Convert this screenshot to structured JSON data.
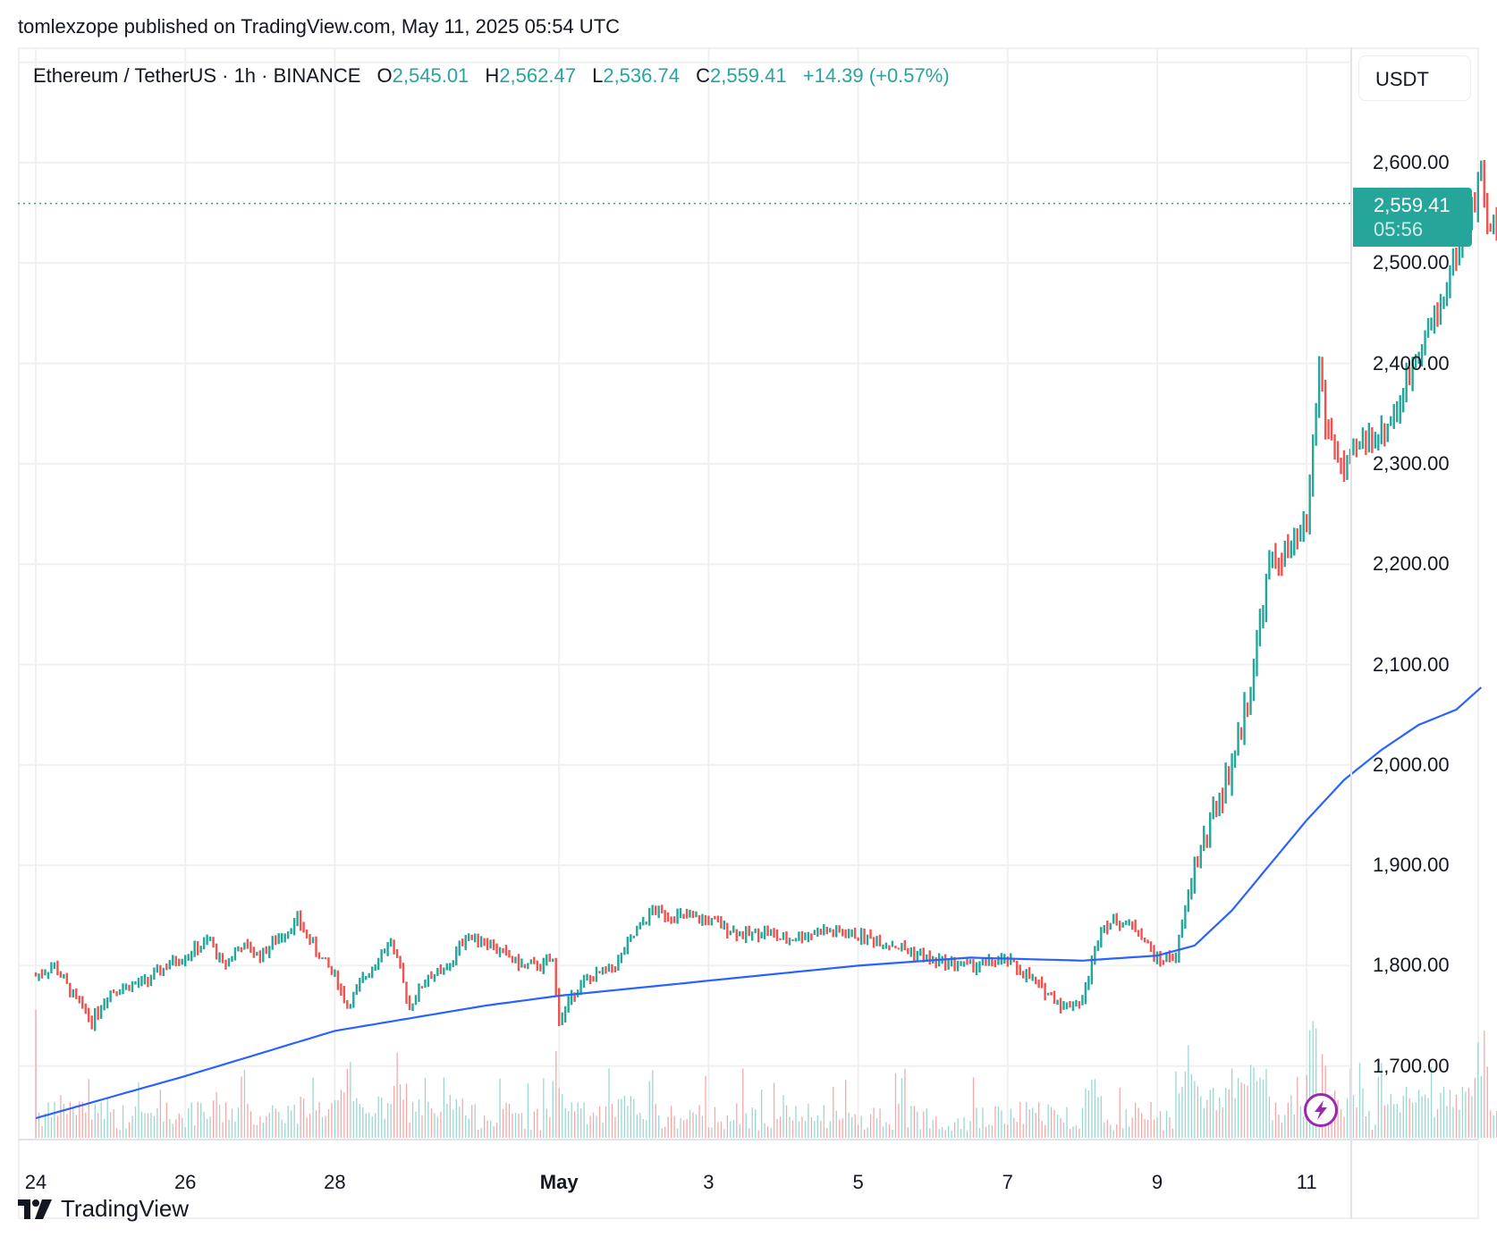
{
  "publisher": "tomlexzope published on TradingView.com, May 11, 2025 05:54 UTC",
  "legend": {
    "symbol": "Ethereum / TetherUS · 1h · BINANCE",
    "o_label": "O",
    "o_value": "2,545.01",
    "h_label": "H",
    "h_value": "2,562.47",
    "l_label": "L",
    "l_value": "2,536.74",
    "c_label": "C",
    "c_value": "2,559.41",
    "change": "+14.39 (+0.57%)"
  },
  "currency_button": "USDT",
  "last_price": {
    "price": "2,559.41",
    "countdown": "05:56"
  },
  "footer": {
    "brand": "TradingView"
  },
  "colors": {
    "up": "#26a69a",
    "down": "#ef5350",
    "ma": "#2962ff",
    "up_volume": "#9ad7d1",
    "down_volume": "#f5a9a7",
    "grid": "#f0f0f0",
    "last_price_line": "#26a69a",
    "bolt": "#9c27b0"
  },
  "chart_data": {
    "type": "candlestick",
    "title": "Ethereum / TetherUS · 1h · BINANCE",
    "interval": "1h",
    "y_axis": {
      "ticks": [
        "2,600.00",
        "2,500.00",
        "2,400.00",
        "2,300.00",
        "2,200.00",
        "2,100.00",
        "2,000.00",
        "1,900.00",
        "1,800.00",
        "1,700.00"
      ],
      "tick_values": [
        2600,
        2500,
        2400,
        2300,
        2200,
        2100,
        2000,
        1900,
        1800,
        1700
      ],
      "range": [
        1645,
        2720
      ]
    },
    "x_axis": {
      "ticks": [
        "24",
        "26",
        "28",
        "May",
        "3",
        "5",
        "7",
        "9",
        "11"
      ],
      "tick_days_from_apr24": [
        0,
        2,
        4,
        7,
        9,
        11,
        13,
        15,
        17
      ],
      "bold_ticks": [
        "May"
      ]
    },
    "grid": true,
    "last_candle": {
      "open": 2545.01,
      "high": 2562.47,
      "low": 2536.74,
      "close": 2559.41,
      "change": 14.39,
      "change_pct": 0.57
    },
    "price_path_close_by_hours_from_apr24": [
      [
        0,
        1790
      ],
      [
        6,
        1800
      ],
      [
        12,
        1770
      ],
      [
        18,
        1745
      ],
      [
        24,
        1775
      ],
      [
        36,
        1785
      ],
      [
        42,
        1800
      ],
      [
        48,
        1810
      ],
      [
        56,
        1825
      ],
      [
        60,
        1800
      ],
      [
        66,
        1820
      ],
      [
        72,
        1810
      ],
      [
        84,
        1845
      ],
      [
        90,
        1815
      ],
      [
        96,
        1790
      ],
      [
        100,
        1760
      ],
      [
        108,
        1800
      ],
      [
        114,
        1825
      ],
      [
        120,
        1760
      ],
      [
        126,
        1790
      ],
      [
        132,
        1795
      ],
      [
        138,
        1830
      ],
      [
        144,
        1825
      ],
      [
        156,
        1800
      ],
      [
        162,
        1800
      ],
      [
        166,
        1805
      ],
      [
        168,
        1745
      ],
      [
        174,
        1780
      ],
      [
        180,
        1790
      ],
      [
        186,
        1800
      ],
      [
        192,
        1830
      ],
      [
        198,
        1855
      ],
      [
        204,
        1850
      ],
      [
        216,
        1845
      ],
      [
        228,
        1830
      ],
      [
        234,
        1835
      ],
      [
        240,
        1825
      ],
      [
        252,
        1835
      ],
      [
        264,
        1830
      ],
      [
        276,
        1820
      ],
      [
        288,
        1805
      ],
      [
        300,
        1800
      ],
      [
        312,
        1805
      ],
      [
        318,
        1790
      ],
      [
        324,
        1775
      ],
      [
        330,
        1760
      ],
      [
        336,
        1765
      ],
      [
        342,
        1840
      ],
      [
        348,
        1845
      ],
      [
        354,
        1835
      ],
      [
        360,
        1805
      ],
      [
        366,
        1810
      ],
      [
        372,
        1900
      ],
      [
        378,
        1950
      ],
      [
        384,
        2000
      ],
      [
        390,
        2080
      ],
      [
        396,
        2200
      ],
      [
        402,
        2210
      ],
      [
        408,
        2240
      ],
      [
        412,
        2400
      ],
      [
        414,
        2340
      ],
      [
        420,
        2290
      ],
      [
        426,
        2325
      ],
      [
        432,
        2330
      ],
      [
        438,
        2360
      ],
      [
        444,
        2420
      ],
      [
        450,
        2450
      ],
      [
        456,
        2510
      ],
      [
        462,
        2560
      ],
      [
        464,
        2600
      ],
      [
        466,
        2530
      ],
      [
        470,
        2545
      ],
      [
        473,
        2559.41
      ]
    ],
    "moving_average_by_hours_from_apr24": [
      [
        0,
        1648
      ],
      [
        48,
        1690
      ],
      [
        96,
        1735
      ],
      [
        144,
        1760
      ],
      [
        168,
        1770
      ],
      [
        216,
        1785
      ],
      [
        264,
        1800
      ],
      [
        300,
        1808
      ],
      [
        336,
        1805
      ],
      [
        360,
        1810
      ],
      [
        372,
        1820
      ],
      [
        384,
        1855
      ],
      [
        396,
        1900
      ],
      [
        408,
        1945
      ],
      [
        420,
        1985
      ],
      [
        432,
        2015
      ],
      [
        444,
        2040
      ],
      [
        456,
        2055
      ],
      [
        465,
        2080
      ]
    ],
    "series": [
      {
        "name": "ETHUSDT 1h candles",
        "type": "candlestick"
      },
      {
        "name": "Moving average",
        "type": "line"
      },
      {
        "name": "Volume",
        "type": "histogram"
      }
    ]
  }
}
